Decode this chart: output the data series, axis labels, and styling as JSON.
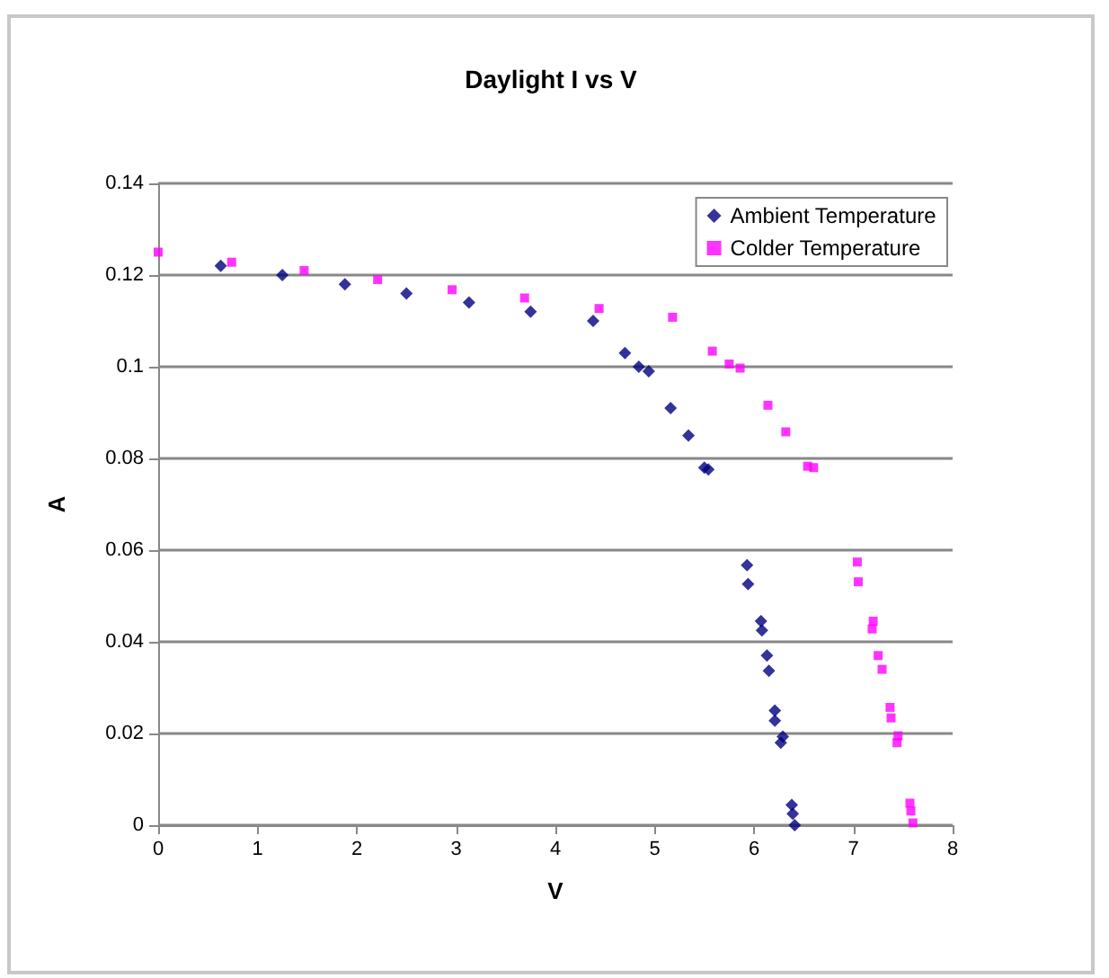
{
  "chart_data": {
    "type": "scatter",
    "title": "Daylight I vs V",
    "xlabel": "V",
    "ylabel": "A",
    "xlim": [
      0,
      8
    ],
    "xticks": [
      0,
      1,
      2,
      3,
      4,
      5,
      6,
      7,
      8
    ],
    "ylim": [
      0,
      0.14
    ],
    "yticks": [
      0,
      0.02,
      0.04,
      0.06,
      0.08,
      0.1,
      0.12,
      0.14
    ],
    "grid": "y",
    "legend": "top right",
    "series": [
      {
        "name": "Ambient Temperature",
        "color": "#000080",
        "marker": "diamond",
        "x": [
          0.63,
          1.25,
          1.88,
          2.5,
          3.13,
          3.75,
          4.38,
          4.7,
          4.84,
          4.94,
          5.16,
          5.34,
          5.5,
          5.54,
          5.93,
          5.94,
          6.07,
          6.08,
          6.13,
          6.15,
          6.21,
          6.21,
          6.29,
          6.27,
          6.38,
          6.39,
          6.41
        ],
        "values": [
          0.122,
          0.12,
          0.118,
          0.116,
          0.114,
          0.112,
          0.11,
          0.103,
          0.1,
          0.099,
          0.091,
          0.085,
          0.078,
          0.0776,
          0.0567,
          0.0526,
          0.0445,
          0.0425,
          0.037,
          0.0337,
          0.025,
          0.0228,
          0.0193,
          0.018,
          0.0044,
          0.0025,
          0.0
        ]
      },
      {
        "name": "Colder Temperature",
        "color": "#ff00ff",
        "marker": "square",
        "x": [
          0,
          0.74,
          1.47,
          2.21,
          2.96,
          3.69,
          4.44,
          5.18,
          5.58,
          5.75,
          5.86,
          6.14,
          6.32,
          6.54,
          6.6,
          7.04,
          7.05,
          7.2,
          7.19,
          7.25,
          7.29,
          7.37,
          7.38,
          7.45,
          7.44,
          7.57,
          7.58,
          7.6
        ],
        "values": [
          0.125,
          0.1228,
          0.121,
          0.119,
          0.1168,
          0.115,
          0.1127,
          0.1108,
          0.1034,
          0.1006,
          0.0997,
          0.0916,
          0.0858,
          0.0783,
          0.078,
          0.0574,
          0.0531,
          0.0445,
          0.0428,
          0.037,
          0.034,
          0.0257,
          0.0234,
          0.0195,
          0.018,
          0.0048,
          0.0031,
          0.0005
        ]
      }
    ]
  }
}
